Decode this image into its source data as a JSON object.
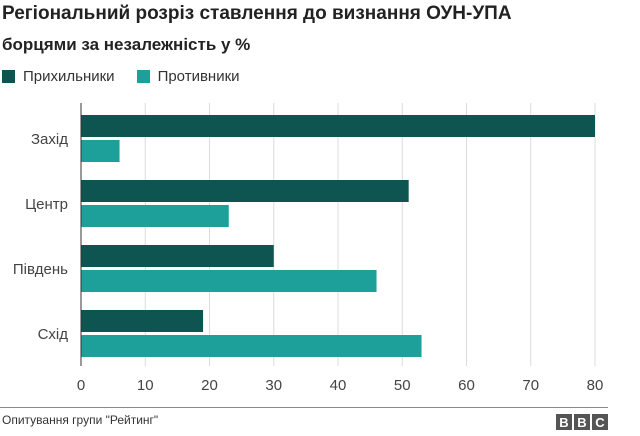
{
  "chart_data": {
    "type": "bar",
    "orientation": "horizontal",
    "title": "Регіональний розріз ставлення до визнання ОУН-УПА",
    "subtitle": "борцями за незалежність у %",
    "categories": [
      "Захід",
      "Центр",
      "Південь",
      "Схід"
    ],
    "series": [
      {
        "name": "Прихильники",
        "color": "#0e5450",
        "values": [
          80,
          51,
          30,
          19
        ]
      },
      {
        "name": "Противники",
        "color": "#1ea09a",
        "values": [
          6,
          23,
          46,
          53
        ]
      }
    ],
    "xlim": [
      0,
      80
    ],
    "xticks": [
      "0",
      "10",
      "20",
      "30",
      "40",
      "50",
      "60",
      "70",
      "80"
    ],
    "grid": true,
    "legend_position": "top-left"
  },
  "footer": {
    "source": "Опитування групи \"Рейтинг\"",
    "logo_letters": [
      "B",
      "B",
      "C"
    ]
  }
}
